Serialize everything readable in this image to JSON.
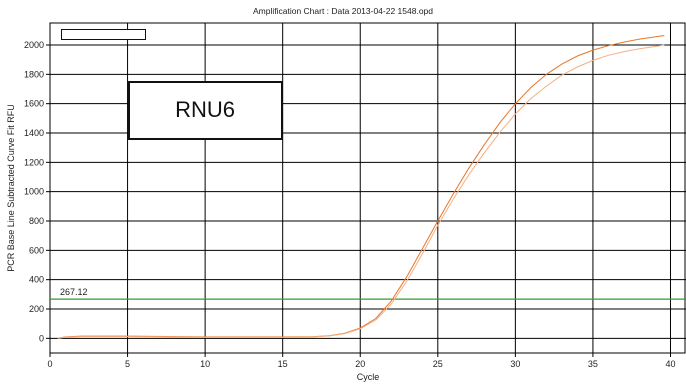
{
  "window": {
    "title": "Amplification Chart : Data 2013-04-22 1548.opd"
  },
  "colors": {
    "grid": "#000000",
    "threshold": "#2e9d2e",
    "series": [
      "#e8762a",
      "#f3b084"
    ]
  },
  "chart_data": {
    "type": "line",
    "title": "Amplification Chart : Data 2013-04-22 1548.opd",
    "xlabel": "Cycle",
    "ylabel": "PCR Base Line Subtracted Curve Fit RFU",
    "xlim": [
      0,
      41
    ],
    "ylim": [
      -100,
      2150
    ],
    "x_ticks": [
      0,
      5,
      10,
      15,
      20,
      25,
      30,
      35,
      40
    ],
    "y_ticks": [
      0,
      200,
      400,
      600,
      800,
      1000,
      1200,
      1400,
      1600,
      1800,
      2000
    ],
    "grid": true,
    "threshold": {
      "value": 267.12,
      "label": "267.12"
    },
    "annotation": "RNU6",
    "series": [
      {
        "x": [
          0.5,
          1,
          2,
          5,
          10,
          15,
          17,
          18,
          19,
          20,
          21,
          22,
          23,
          24,
          25,
          26,
          27,
          28,
          29,
          30,
          31,
          32,
          33,
          34,
          35,
          36,
          37,
          38,
          39,
          39.6
        ],
        "values": [
          0,
          10,
          15,
          15,
          10,
          10,
          12,
          18,
          35,
          70,
          135,
          255,
          420,
          610,
          800,
          985,
          1160,
          1320,
          1470,
          1600,
          1710,
          1800,
          1870,
          1925,
          1965,
          1995,
          2020,
          2040,
          2055,
          2065
        ]
      },
      {
        "x": [
          0.5,
          1,
          2,
          5,
          10,
          15,
          17,
          18,
          19,
          20,
          21,
          22,
          23,
          24,
          25,
          26,
          27,
          28,
          29,
          30,
          31,
          32,
          33,
          34,
          35,
          36,
          37,
          38,
          39,
          39.6
        ],
        "values": [
          0,
          8,
          12,
          12,
          8,
          8,
          10,
          16,
          32,
          65,
          125,
          235,
          390,
          575,
          770,
          950,
          1115,
          1265,
          1405,
          1530,
          1635,
          1720,
          1795,
          1850,
          1895,
          1930,
          1955,
          1975,
          1990,
          2000
        ]
      }
    ]
  }
}
